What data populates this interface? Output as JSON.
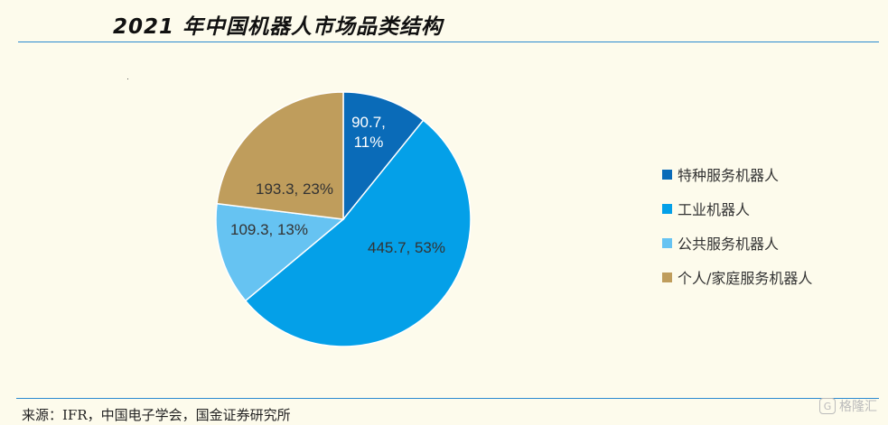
{
  "title": "2021 年中国机器人市场品类结构",
  "source": "来源：IFR，中国电子学会，国金证券研究所",
  "watermark": {
    "icon": "G",
    "text": "格隆汇"
  },
  "chart_data": {
    "type": "pie",
    "slices": [
      {
        "name": "特种服务机器人",
        "value": 90.7,
        "percent": 11,
        "label_line1": "90.7,",
        "label_line2": "11%",
        "color": "#0a6bb8",
        "label_color": "#ffffff"
      },
      {
        "name": "工业机器人",
        "value": 445.7,
        "percent": 53,
        "label_line1": "445.7, 53%",
        "label_line2": "",
        "color": "#04a0e8",
        "label_color": "#333333"
      },
      {
        "name": "公共服务机器人",
        "value": 109.3,
        "percent": 13,
        "label_line1": "109.3, 13%",
        "label_line2": "",
        "color": "#66c3f2",
        "label_color": "#333333"
      },
      {
        "name": "个人/家庭服务机器人",
        "value": 193.3,
        "percent": 23,
        "label_line1": "193.3, 23%",
        "label_line2": "",
        "color": "#bf9d5c",
        "label_color": "#333333"
      }
    ],
    "legend": "right"
  }
}
